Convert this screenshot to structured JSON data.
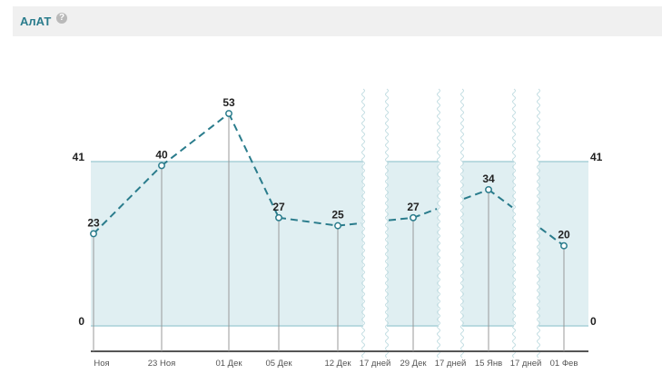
{
  "header": {
    "title": "АлАТ",
    "help_icon": "help-icon"
  },
  "chart_data": {
    "type": "line",
    "title": "АлАТ",
    "xlabel": "",
    "ylabel": "",
    "reference_range": {
      "low": 0,
      "high": 41,
      "low_label": "0",
      "high_label": "41"
    },
    "x_ticks": [
      "Ноя",
      "23 Ноя",
      "01 Дек",
      "05 Дек",
      "12 Дек",
      "17 дней",
      "29 Дек",
      "17 дней",
      "15 Янв",
      "17 дней",
      "01 Фев"
    ],
    "series": [
      {
        "points": [
          {
            "date": "Ноя",
            "value": 23,
            "label": "23"
          },
          {
            "date": "23 Ноя",
            "value": 40,
            "label": "40"
          },
          {
            "date": "01 Дек",
            "value": 53,
            "label": "53"
          },
          {
            "date": "05 Дек",
            "value": 27,
            "label": "27"
          },
          {
            "date": "12 Дек",
            "value": 25,
            "label": "25"
          },
          {
            "date": "29 Дек",
            "value": 27,
            "label": "27"
          },
          {
            "date": "15 Янв",
            "value": 34,
            "label": "34"
          },
          {
            "date": "01 Фев",
            "value": 20,
            "label": "20"
          }
        ]
      }
    ],
    "axis_breaks": [
      "17 дней",
      "17 дней",
      "17 дней"
    ],
    "colors": {
      "line": "#2a7c8c",
      "range_fill": "#e0eff2",
      "range_border": "#a8d0d8"
    }
  }
}
